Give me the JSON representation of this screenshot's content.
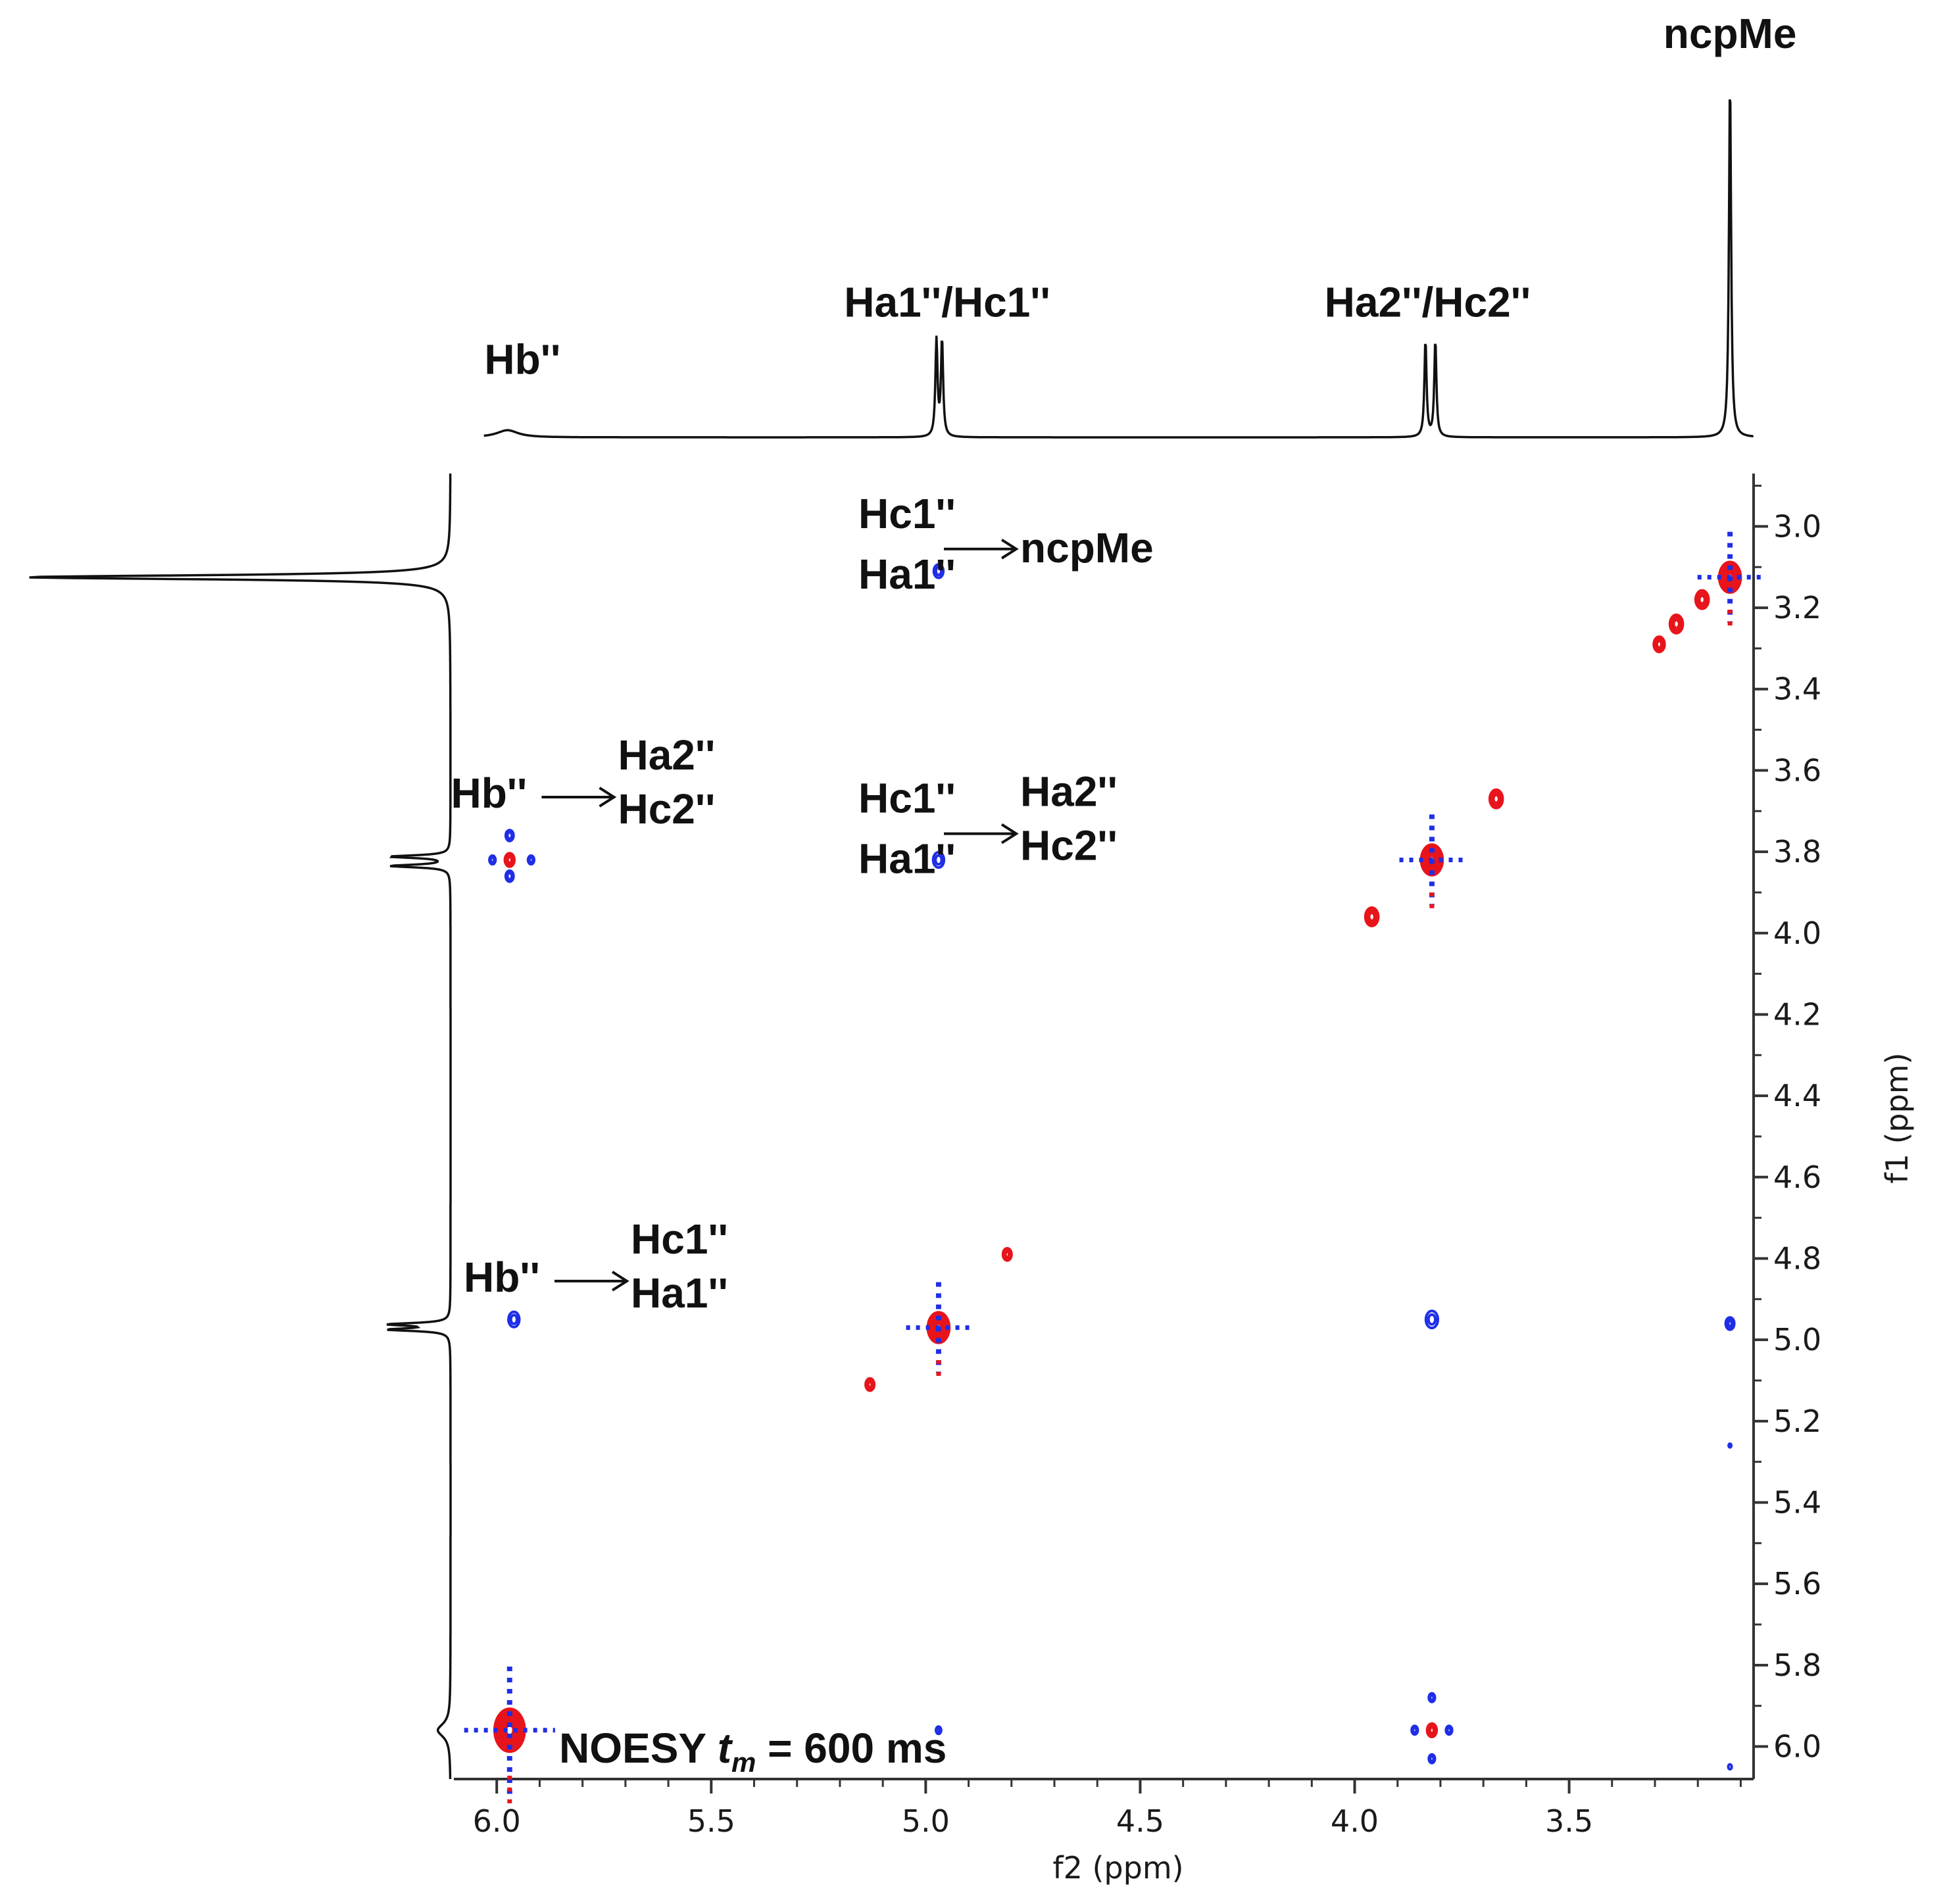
{
  "chart_data": {
    "type": "noesy-2d-contour",
    "title": "",
    "xlabel": "f2 (ppm)",
    "ylabel": "f1 (ppm)",
    "xlim": [
      6.1,
      3.07
    ],
    "ylim": [
      2.87,
      6.08
    ],
    "x_ticks": [
      {
        "value": 6.0,
        "label": "6.0"
      },
      {
        "value": 5.5,
        "label": "5.5"
      },
      {
        "value": 5.0,
        "label": "5.0"
      },
      {
        "value": 4.5,
        "label": "4.5"
      },
      {
        "value": 4.0,
        "label": "4.0"
      },
      {
        "value": 3.5,
        "label": "3.5"
      }
    ],
    "y_ticks": [
      {
        "value": 3.0,
        "label": "3.0"
      },
      {
        "value": 3.2,
        "label": "3.2"
      },
      {
        "value": 3.4,
        "label": "3.4"
      },
      {
        "value": 3.6,
        "label": "3.6"
      },
      {
        "value": 3.8,
        "label": "3.8"
      },
      {
        "value": 4.0,
        "label": "4.0"
      },
      {
        "value": 4.2,
        "label": "4.2"
      },
      {
        "value": 4.4,
        "label": "4.4"
      },
      {
        "value": 4.6,
        "label": "4.6"
      },
      {
        "value": 4.8,
        "label": "4.8"
      },
      {
        "value": 5.0,
        "label": "5.0"
      },
      {
        "value": 5.2,
        "label": "5.2"
      },
      {
        "value": 5.4,
        "label": "5.4"
      },
      {
        "value": 5.6,
        "label": "5.6"
      },
      {
        "value": 5.8,
        "label": "5.8"
      },
      {
        "value": 6.0,
        "label": "6.0"
      }
    ],
    "experiment_label": {
      "prefix": "NOESY ",
      "italic": "t",
      "subscript": "m",
      "suffix": " = 600 ms"
    },
    "colors": {
      "positive": "#e8141b",
      "negative": "#1f2ee6",
      "axis": "#333333",
      "trace": "#111111"
    },
    "f2_projection": {
      "baseline_range": [
        6.03,
        3.07
      ],
      "lines": [
        {
          "ppm": 5.975,
          "height": 0.02,
          "width": 0.03
        },
        {
          "ppm": 4.975,
          "height": 0.27,
          "width": 0.003
        },
        {
          "ppm": 4.962,
          "height": 0.27,
          "width": 0.003
        },
        {
          "ppm": 3.835,
          "height": 0.27,
          "width": 0.003
        },
        {
          "ppm": 3.812,
          "height": 0.27,
          "width": 0.003
        },
        {
          "ppm": 3.125,
          "height": 1.0,
          "width": 0.003
        }
      ],
      "peak_labels": [
        {
          "text": "Hb''",
          "ppm": 5.94,
          "height": 0.14
        },
        {
          "text": "Ha1''/Hc1''",
          "ppm": 4.95,
          "height": 0.3
        },
        {
          "text": "Ha2''/Hc2''",
          "ppm": 3.83,
          "height": 0.3
        },
        {
          "text": "ncpMe",
          "ppm": 3.125,
          "height": 1.05
        }
      ]
    },
    "f1_projection": {
      "baseline_range": [
        2.87,
        6.08
      ],
      "lines": [
        {
          "ppm": 3.125,
          "height": 1.0,
          "width": 0.006
        },
        {
          "ppm": 3.812,
          "height": 0.14,
          "width": 0.004
        },
        {
          "ppm": 3.835,
          "height": 0.14,
          "width": 0.004
        },
        {
          "ppm": 4.962,
          "height": 0.14,
          "width": 0.004
        },
        {
          "ppm": 4.975,
          "height": 0.14,
          "width": 0.004
        },
        {
          "ppm": 5.96,
          "height": 0.03,
          "width": 0.02
        }
      ]
    },
    "peaks": [
      {
        "f2": 3.125,
        "f1": 3.125,
        "sign": "positive",
        "size": 0.05,
        "levels": 7,
        "type": "diagonal"
      },
      {
        "f2": 3.82,
        "f1": 3.82,
        "sign": "positive",
        "size": 0.05,
        "levels": 7,
        "type": "diagonal"
      },
      {
        "f2": 4.97,
        "f1": 4.97,
        "sign": "positive",
        "size": 0.05,
        "levels": 7,
        "type": "diagonal"
      },
      {
        "f2": 5.97,
        "f1": 5.96,
        "sign": "positive",
        "size": 0.07,
        "levels": 8,
        "type": "diagonal"
      },
      {
        "f2": 3.29,
        "f1": 3.29,
        "sign": "positive",
        "size": 0.025,
        "levels": 3,
        "type": "artifact"
      },
      {
        "f2": 3.25,
        "f1": 3.24,
        "sign": "positive",
        "size": 0.03,
        "levels": 3,
        "type": "artifact"
      },
      {
        "f2": 3.19,
        "f1": 3.18,
        "sign": "positive",
        "size": 0.03,
        "levels": 3,
        "type": "artifact"
      },
      {
        "f2": 3.67,
        "f1": 3.67,
        "sign": "positive",
        "size": 0.03,
        "levels": 3,
        "type": "artifact"
      },
      {
        "f2": 3.96,
        "f1": 3.96,
        "sign": "positive",
        "size": 0.03,
        "levels": 3,
        "type": "artifact"
      },
      {
        "f2": 4.81,
        "f1": 4.79,
        "sign": "positive",
        "size": 0.02,
        "levels": 3,
        "type": "artifact"
      },
      {
        "f2": 5.13,
        "f1": 5.11,
        "sign": "positive",
        "size": 0.02,
        "levels": 3,
        "type": "artifact"
      },
      {
        "f2": 5.97,
        "f1": 3.82,
        "sign": "positive",
        "size": 0.022,
        "levels": 3,
        "type": "cross"
      },
      {
        "f2": 3.82,
        "f1": 5.96,
        "sign": "positive",
        "size": 0.022,
        "levels": 3,
        "type": "cross"
      },
      {
        "f2": 4.97,
        "f1": 3.11,
        "sign": "negative",
        "size": 0.022,
        "levels": 2,
        "type": "cross"
      },
      {
        "f2": 4.97,
        "f1": 3.82,
        "sign": "negative",
        "size": 0.025,
        "levels": 2,
        "type": "cross"
      },
      {
        "f2": 5.96,
        "f1": 4.95,
        "sign": "negative",
        "size": 0.025,
        "levels": 2,
        "type": "cross"
      },
      {
        "f2": 3.82,
        "f1": 4.95,
        "sign": "negative",
        "size": 0.028,
        "levels": 2,
        "type": "cross"
      },
      {
        "f2": 3.125,
        "f1": 4.96,
        "sign": "negative",
        "size": 0.02,
        "levels": 3,
        "type": "cross"
      },
      {
        "f2": 4.97,
        "f1": 5.96,
        "sign": "negative",
        "size": 0.012,
        "levels": 2,
        "type": "cross"
      },
      {
        "f2": 5.97,
        "f1": 3.76,
        "sign": "negative",
        "size": 0.018,
        "levels": 2,
        "type": "cross"
      },
      {
        "f2": 5.97,
        "f1": 3.86,
        "sign": "negative",
        "size": 0.018,
        "levels": 2,
        "type": "cross"
      },
      {
        "f2": 5.92,
        "f1": 3.82,
        "sign": "negative",
        "size": 0.014,
        "levels": 2,
        "type": "cross"
      },
      {
        "f2": 6.01,
        "f1": 3.82,
        "sign": "negative",
        "size": 0.014,
        "levels": 2,
        "type": "cross"
      },
      {
        "f2": 3.82,
        "f1": 5.88,
        "sign": "negative",
        "size": 0.014,
        "levels": 2,
        "type": "cross"
      },
      {
        "f2": 3.82,
        "f1": 6.03,
        "sign": "negative",
        "size": 0.014,
        "levels": 2,
        "type": "cross"
      },
      {
        "f2": 3.78,
        "f1": 5.96,
        "sign": "negative",
        "size": 0.014,
        "levels": 2,
        "type": "cross"
      },
      {
        "f2": 3.86,
        "f1": 5.96,
        "sign": "negative",
        "size": 0.014,
        "levels": 2,
        "type": "cross"
      },
      {
        "f2": 3.125,
        "f1": 5.26,
        "sign": "negative",
        "size": 0.006,
        "levels": 1,
        "type": "artifact"
      },
      {
        "f2": 3.125,
        "f1": 6.05,
        "sign": "negative",
        "size": 0.008,
        "levels": 1,
        "type": "artifact"
      }
    ],
    "annotations": [
      {
        "from": "Hc1''",
        "from2": "Ha1''",
        "to": "ncpMe",
        "to2": "",
        "at_f2": 4.93,
        "at_f1": 3.02
      },
      {
        "from": "Hb''",
        "from2": "",
        "to": "Ha2''",
        "to2": "Hc2''",
        "at_f2": 5.88,
        "at_f1": 3.63
      },
      {
        "from": "Hc1''",
        "from2": "Ha1''",
        "to": "Ha2''",
        "to2": "Hc2''",
        "at_f2": 4.93,
        "at_f1": 3.72
      },
      {
        "from": "Hb''",
        "from2": "",
        "to": "Hc1''",
        "to2": "Ha1''",
        "at_f2": 5.85,
        "at_f1": 4.82
      }
    ]
  }
}
